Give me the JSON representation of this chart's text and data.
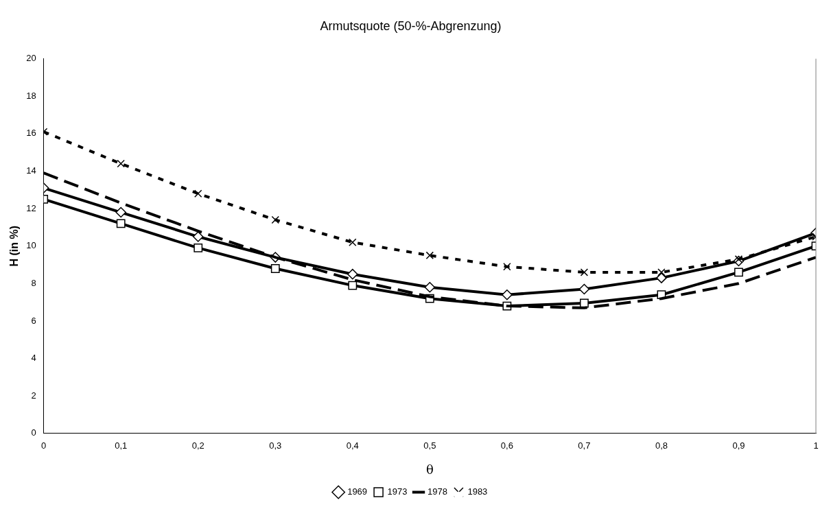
{
  "chart_data": {
    "type": "line",
    "title": "Armutsquote (50-%-Abgrenzung)",
    "xlabel": "θ",
    "ylabel": "H (in %)",
    "x": [
      0,
      0.1,
      0.2,
      0.3,
      0.4,
      0.5,
      0.6,
      0.7,
      0.8,
      0.9,
      1
    ],
    "xlim": [
      0,
      1
    ],
    "xticks": [
      0,
      {
        "value": 0.1,
        "label": "0,1"
      },
      {
        "value": 0.2,
        "label": "0,2"
      },
      {
        "value": 0.3,
        "label": "0,3"
      },
      {
        "value": 0.4,
        "label": "0,4"
      },
      {
        "value": 0.5,
        "label": "0,5"
      },
      {
        "value": 0.6,
        "label": "0,6"
      },
      {
        "value": 0.7,
        "label": "0,7"
      },
      {
        "value": 0.8,
        "label": "0,8"
      },
      {
        "value": 0.9,
        "label": "0,9"
      },
      1
    ],
    "ylim": [
      0,
      20
    ],
    "yticks": [
      0,
      2,
      4,
      6,
      8,
      10,
      12,
      14,
      16,
      18,
      20
    ],
    "grid": false,
    "legend": "bottom",
    "series": [
      {
        "name": "1969",
        "color": "#000000",
        "marker": "diamond",
        "line_style": "solid",
        "values": [
          13.1,
          11.8,
          10.5,
          9.4,
          8.5,
          7.8,
          7.4,
          7.7,
          8.3,
          9.2,
          10.7
        ]
      },
      {
        "name": "1973",
        "color": "#000000",
        "marker": "square",
        "line_style": "solid",
        "values": [
          12.5,
          11.2,
          9.9,
          8.8,
          7.9,
          7.2,
          6.8,
          6.95,
          7.4,
          8.6,
          10.0
        ]
      },
      {
        "name": "1978",
        "color": "#000000",
        "marker": "none",
        "line_style": "dashed",
        "values": [
          13.9,
          12.3,
          10.8,
          9.4,
          8.2,
          7.3,
          6.8,
          6.7,
          7.2,
          8.0,
          9.4
        ]
      },
      {
        "name": "1983",
        "color": "#000000",
        "marker": "cross",
        "line_style": "dotted",
        "values": [
          16.1,
          14.4,
          12.8,
          11.4,
          10.2,
          9.5,
          8.9,
          8.6,
          8.6,
          9.3,
          10.5
        ]
      }
    ]
  }
}
